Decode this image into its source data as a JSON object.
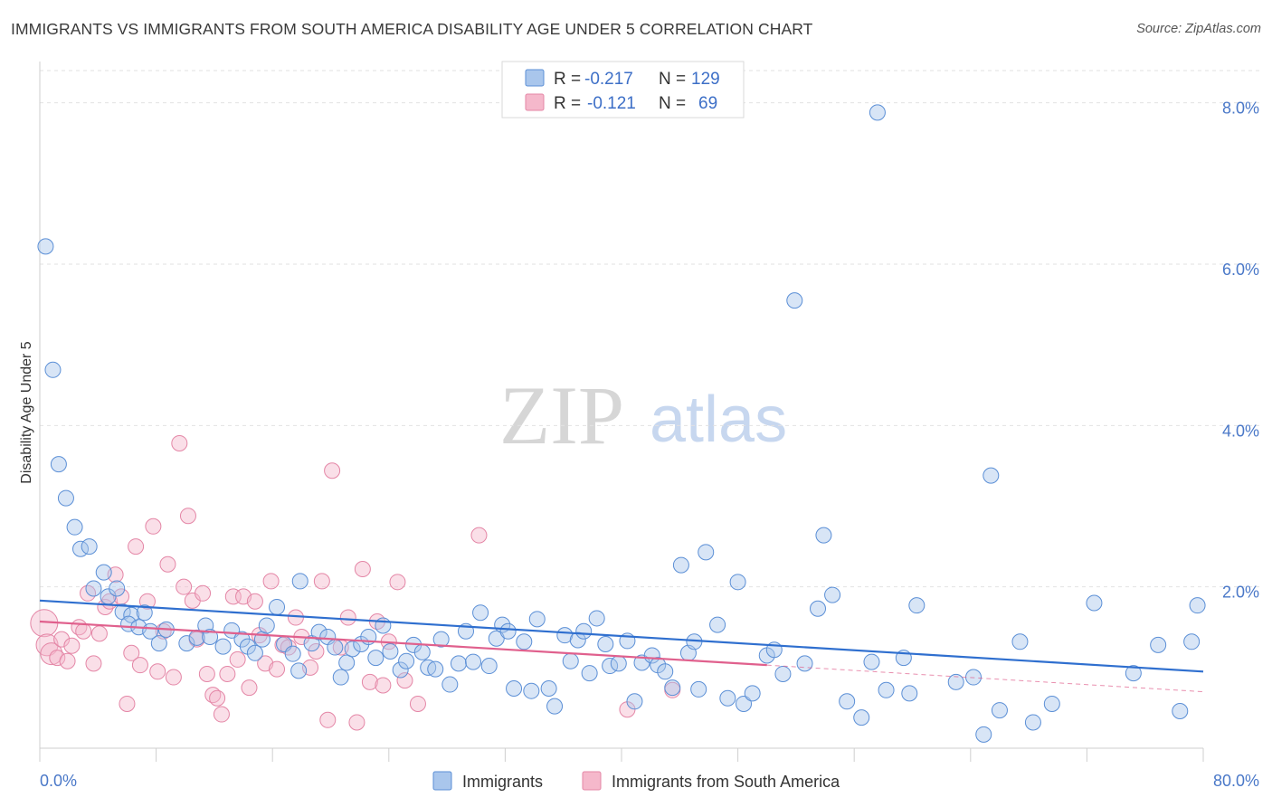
{
  "header": {
    "title": "IMMIGRANTS VS IMMIGRANTS FROM SOUTH AMERICA DISABILITY AGE UNDER 5 CORRELATION CHART",
    "source": "Source: ZipAtlas.com"
  },
  "watermark": {
    "zip": "ZIP",
    "atlas": "atlas"
  },
  "legend": {
    "rows": [
      {
        "r_label": "R =",
        "r_value": "-0.217",
        "n_label": "N =",
        "n_value": "129"
      },
      {
        "r_label": "R =",
        "r_value": "-0.121",
        "n_label": "N =",
        "n_value": "69"
      }
    ],
    "bottom": [
      "Immigrants",
      "Immigrants from South America"
    ]
  },
  "colors": {
    "blue_fill": "#a9c6ec",
    "blue_stroke": "#5b8fd6",
    "blue_line": "#2f6fcf",
    "pink_fill": "#f5b8cb",
    "pink_stroke": "#e486a6",
    "pink_line": "#e0608d",
    "tick_label": "#4a78c8",
    "grid": "#e2e2e2"
  },
  "chart_data": {
    "type": "scatter",
    "title": "IMMIGRANTS VS IMMIGRANTS FROM SOUTH AMERICA DISABILITY AGE UNDER 5 CORRELATION CHART",
    "xlabel": "",
    "ylabel": "Disability Age Under 5",
    "xlim": [
      0,
      80
    ],
    "ylim": [
      0,
      8.4
    ],
    "x_tick_labels": [
      "0.0%",
      "80.0%"
    ],
    "y_ticks": [
      2,
      4,
      6,
      8
    ],
    "y_tick_labels": [
      "2.0%",
      "4.0%",
      "6.0%",
      "8.0%"
    ],
    "grid": true,
    "legend_position": "top-center",
    "series": [
      {
        "name": "Immigrants",
        "color": "#a9c6ec",
        "r": -0.217,
        "n": 129,
        "trend": {
          "x": [
            0,
            80
          ],
          "y": [
            1.83,
            0.95
          ]
        },
        "points": [
          [
            0.4,
            6.22
          ],
          [
            0.9,
            4.69
          ],
          [
            1.3,
            3.52
          ],
          [
            1.8,
            3.1
          ],
          [
            2.4,
            2.74
          ],
          [
            2.8,
            2.47
          ],
          [
            3.4,
            2.5
          ],
          [
            4.4,
            2.18
          ],
          [
            3.7,
            1.98
          ],
          [
            4.7,
            1.88
          ],
          [
            5.3,
            1.98
          ],
          [
            5.7,
            1.69
          ],
          [
            6.3,
            1.65
          ],
          [
            7.2,
            1.68
          ],
          [
            6.1,
            1.54
          ],
          [
            6.8,
            1.5
          ],
          [
            7.6,
            1.45
          ],
          [
            8.7,
            1.47
          ],
          [
            8.2,
            1.3
          ],
          [
            10.1,
            1.3
          ],
          [
            10.8,
            1.37
          ],
          [
            11.4,
            1.52
          ],
          [
            11.7,
            1.38
          ],
          [
            12.6,
            1.26
          ],
          [
            13.2,
            1.46
          ],
          [
            13.9,
            1.35
          ],
          [
            14.3,
            1.26
          ],
          [
            14.8,
            1.18
          ],
          [
            15.3,
            1.35
          ],
          [
            15.6,
            1.52
          ],
          [
            16.3,
            1.75
          ],
          [
            16.8,
            1.29
          ],
          [
            17.4,
            1.17
          ],
          [
            17.8,
            0.96
          ],
          [
            17.9,
            2.07
          ],
          [
            18.7,
            1.3
          ],
          [
            19.2,
            1.44
          ],
          [
            19.8,
            1.38
          ],
          [
            20.3,
            1.25
          ],
          [
            20.7,
            0.88
          ],
          [
            21.1,
            1.06
          ],
          [
            21.5,
            1.23
          ],
          [
            22.1,
            1.29
          ],
          [
            22.6,
            1.38
          ],
          [
            23.1,
            1.12
          ],
          [
            23.6,
            1.52
          ],
          [
            24.1,
            1.2
          ],
          [
            24.8,
            0.97
          ],
          [
            25.2,
            1.08
          ],
          [
            25.7,
            1.28
          ],
          [
            26.3,
            1.19
          ],
          [
            26.7,
            1.0
          ],
          [
            27.2,
            0.98
          ],
          [
            27.6,
            1.35
          ],
          [
            28.2,
            0.79
          ],
          [
            28.8,
            1.05
          ],
          [
            29.3,
            1.45
          ],
          [
            29.8,
            1.07
          ],
          [
            30.3,
            1.68
          ],
          [
            30.9,
            1.02
          ],
          [
            31.4,
            1.36
          ],
          [
            31.8,
            1.53
          ],
          [
            32.2,
            1.45
          ],
          [
            32.6,
            0.74
          ],
          [
            33.3,
            1.32
          ],
          [
            33.8,
            0.71
          ],
          [
            34.2,
            1.6
          ],
          [
            35.0,
            0.74
          ],
          [
            35.4,
            0.52
          ],
          [
            36.1,
            1.4
          ],
          [
            36.5,
            1.08
          ],
          [
            37.0,
            1.34
          ],
          [
            37.4,
            1.45
          ],
          [
            37.8,
            0.93
          ],
          [
            38.3,
            1.61
          ],
          [
            38.9,
            1.29
          ],
          [
            39.2,
            1.02
          ],
          [
            39.8,
            1.05
          ],
          [
            40.4,
            1.33
          ],
          [
            40.9,
            0.58
          ],
          [
            41.4,
            1.06
          ],
          [
            42.1,
            1.15
          ],
          [
            42.5,
            1.03
          ],
          [
            43.0,
            0.95
          ],
          [
            43.5,
            0.75
          ],
          [
            44.1,
            2.27
          ],
          [
            44.6,
            1.18
          ],
          [
            45.0,
            1.32
          ],
          [
            45.3,
            0.73
          ],
          [
            45.8,
            2.43
          ],
          [
            46.6,
            1.53
          ],
          [
            47.3,
            0.62
          ],
          [
            48.0,
            2.06
          ],
          [
            48.4,
            0.55
          ],
          [
            49.0,
            0.68
          ],
          [
            50.0,
            1.15
          ],
          [
            50.5,
            1.22
          ],
          [
            51.1,
            0.92
          ],
          [
            51.9,
            5.55
          ],
          [
            52.6,
            1.05
          ],
          [
            53.5,
            1.73
          ],
          [
            53.9,
            2.64
          ],
          [
            54.5,
            1.9
          ],
          [
            55.5,
            0.58
          ],
          [
            56.5,
            0.38
          ],
          [
            57.2,
            1.07
          ],
          [
            57.6,
            7.88
          ],
          [
            58.2,
            0.72
          ],
          [
            59.4,
            1.12
          ],
          [
            59.8,
            0.68
          ],
          [
            60.3,
            1.77
          ],
          [
            63.0,
            0.82
          ],
          [
            64.2,
            0.88
          ],
          [
            64.9,
            0.17
          ],
          [
            65.4,
            3.38
          ],
          [
            66.0,
            0.47
          ],
          [
            67.4,
            1.32
          ],
          [
            68.3,
            0.32
          ],
          [
            69.6,
            0.55
          ],
          [
            72.5,
            1.8
          ],
          [
            75.2,
            0.93
          ],
          [
            76.9,
            1.28
          ],
          [
            78.4,
            0.46
          ],
          [
            79.2,
            1.32
          ],
          [
            79.6,
            1.77
          ]
        ]
      },
      {
        "name": "Immigrants from South America",
        "color": "#f5b8cb",
        "r": -0.121,
        "n": 69,
        "trend": {
          "x": [
            0,
            50
          ],
          "y": [
            1.57,
            1.03
          ]
        },
        "trend_extension": {
          "x": [
            50,
            80
          ],
          "y": [
            1.03,
            0.7
          ]
        },
        "points": [
          [
            0.3,
            1.55
          ],
          [
            0.5,
            1.28
          ],
          [
            0.8,
            1.17
          ],
          [
            1.2,
            1.12
          ],
          [
            1.5,
            1.35
          ],
          [
            1.9,
            1.08
          ],
          [
            2.2,
            1.27
          ],
          [
            2.7,
            1.5
          ],
          [
            3.0,
            1.45
          ],
          [
            3.3,
            1.92
          ],
          [
            3.7,
            1.05
          ],
          [
            4.1,
            1.42
          ],
          [
            4.5,
            1.75
          ],
          [
            4.8,
            1.82
          ],
          [
            5.2,
            2.15
          ],
          [
            5.6,
            1.88
          ],
          [
            6.0,
            0.55
          ],
          [
            6.3,
            1.18
          ],
          [
            6.6,
            2.5
          ],
          [
            6.9,
            1.03
          ],
          [
            7.4,
            1.82
          ],
          [
            7.8,
            2.75
          ],
          [
            8.1,
            0.95
          ],
          [
            8.5,
            1.45
          ],
          [
            8.8,
            2.28
          ],
          [
            9.2,
            0.88
          ],
          [
            9.6,
            3.78
          ],
          [
            9.9,
            2.0
          ],
          [
            10.2,
            2.88
          ],
          [
            10.5,
            1.83
          ],
          [
            10.8,
            1.35
          ],
          [
            11.2,
            1.92
          ],
          [
            11.5,
            0.92
          ],
          [
            11.9,
            0.66
          ],
          [
            12.2,
            0.62
          ],
          [
            12.5,
            0.42
          ],
          [
            12.9,
            0.92
          ],
          [
            13.3,
            1.88
          ],
          [
            13.6,
            1.1
          ],
          [
            14.0,
            1.88
          ],
          [
            14.4,
            0.75
          ],
          [
            14.8,
            1.82
          ],
          [
            15.1,
            1.4
          ],
          [
            15.5,
            1.05
          ],
          [
            15.9,
            2.07
          ],
          [
            16.3,
            0.98
          ],
          [
            16.7,
            1.28
          ],
          [
            17.1,
            1.25
          ],
          [
            17.6,
            1.62
          ],
          [
            18.0,
            1.38
          ],
          [
            18.6,
            1.0
          ],
          [
            19.0,
            1.2
          ],
          [
            19.4,
            2.07
          ],
          [
            19.8,
            0.35
          ],
          [
            20.1,
            3.44
          ],
          [
            20.7,
            1.25
          ],
          [
            21.2,
            1.62
          ],
          [
            21.8,
            0.32
          ],
          [
            22.2,
            2.22
          ],
          [
            22.7,
            0.82
          ],
          [
            23.2,
            1.57
          ],
          [
            23.6,
            0.78
          ],
          [
            24.0,
            1.32
          ],
          [
            24.6,
            2.06
          ],
          [
            25.1,
            0.84
          ],
          [
            26.0,
            0.55
          ],
          [
            30.2,
            2.64
          ],
          [
            40.4,
            0.48
          ],
          [
            43.5,
            0.72
          ]
        ]
      }
    ]
  }
}
